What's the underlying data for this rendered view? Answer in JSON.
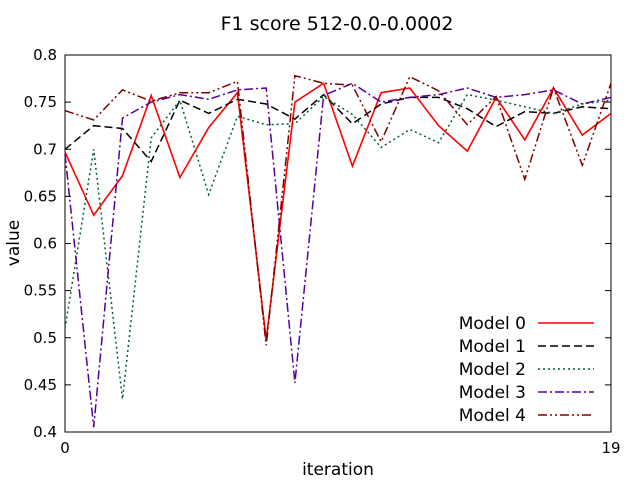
{
  "chart_data": {
    "type": "line",
    "title": "F1 score 512-0.0-0.0002",
    "xlabel": "iteration",
    "ylabel": "value",
    "xlim": [
      0,
      19
    ],
    "ylim": [
      0.4,
      0.8
    ],
    "x_ticks": [
      "0",
      "19"
    ],
    "y_ticks": [
      "0.4",
      "0.45",
      "0.5",
      "0.55",
      "0.6",
      "0.65",
      "0.7",
      "0.75",
      "0.8"
    ],
    "grid": false,
    "legend_position": "bottom-right",
    "x": [
      0,
      1,
      2,
      3,
      4,
      5,
      6,
      7,
      8,
      9,
      10,
      11,
      12,
      13,
      14,
      15,
      16,
      17,
      18,
      19
    ],
    "series": [
      {
        "name": "Model 0",
        "color": "#ff0000",
        "dash": "solid",
        "values": [
          0.697,
          0.63,
          0.672,
          0.757,
          0.67,
          0.723,
          0.76,
          0.498,
          0.75,
          0.77,
          0.682,
          0.76,
          0.765,
          0.725,
          0.698,
          0.755,
          0.71,
          0.765,
          0.715,
          0.738
        ]
      },
      {
        "name": "Model 1",
        "color": "#000000",
        "dash": "dashed",
        "values": [
          0.7,
          0.725,
          0.722,
          0.687,
          0.752,
          0.738,
          0.753,
          0.748,
          0.732,
          0.758,
          0.727,
          0.748,
          0.755,
          0.755,
          0.743,
          0.724,
          0.74,
          0.738,
          0.745,
          0.743
        ]
      },
      {
        "name": "Model 2",
        "color": "#006030",
        "dash": "dotted",
        "values": [
          0.51,
          0.7,
          0.435,
          0.712,
          0.752,
          0.652,
          0.735,
          0.726,
          0.727,
          0.756,
          0.737,
          0.702,
          0.721,
          0.707,
          0.758,
          0.752,
          0.745,
          0.738,
          0.748,
          0.752
        ]
      },
      {
        "name": "Model 3",
        "color": "#550099",
        "dash": "dashdot",
        "values": [
          0.695,
          0.405,
          0.733,
          0.75,
          0.758,
          0.753,
          0.763,
          0.765,
          0.452,
          0.757,
          0.77,
          0.75,
          0.755,
          0.758,
          0.765,
          0.755,
          0.758,
          0.763,
          0.748,
          0.755
        ]
      },
      {
        "name": "Model 4",
        "color": "#800000",
        "dash": "dashdotdot",
        "values": [
          0.741,
          0.731,
          0.763,
          0.751,
          0.76,
          0.76,
          0.772,
          0.492,
          0.778,
          0.77,
          0.768,
          0.708,
          0.777,
          0.762,
          0.726,
          0.756,
          0.668,
          0.765,
          0.683,
          0.77
        ]
      }
    ]
  }
}
